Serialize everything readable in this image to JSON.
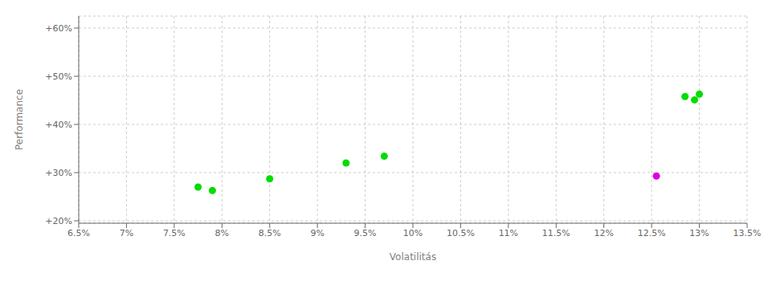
{
  "chart_data": {
    "type": "scatter",
    "xlabel": "Volatilitás",
    "ylabel": "Performance",
    "xlim": [
      0.065,
      0.135
    ],
    "ylim": [
      0.195,
      0.625
    ],
    "xticks": [
      {
        "value": 0.065,
        "label": "6.5%"
      },
      {
        "value": 0.07,
        "label": "7%"
      },
      {
        "value": 0.075,
        "label": "7.5%"
      },
      {
        "value": 0.08,
        "label": "8%"
      },
      {
        "value": 0.085,
        "label": "8.5%"
      },
      {
        "value": 0.09,
        "label": "9%"
      },
      {
        "value": 0.095,
        "label": "9.5%"
      },
      {
        "value": 0.1,
        "label": "10%"
      },
      {
        "value": 0.105,
        "label": "10.5%"
      },
      {
        "value": 0.11,
        "label": "11%"
      },
      {
        "value": 0.115,
        "label": "11.5%"
      },
      {
        "value": 0.12,
        "label": "12%"
      },
      {
        "value": 0.125,
        "label": "12.5%"
      },
      {
        "value": 0.13,
        "label": "13%"
      },
      {
        "value": 0.135,
        "label": "13.5%"
      }
    ],
    "yticks": [
      {
        "value": 0.2,
        "label": "+20%"
      },
      {
        "value": 0.3,
        "label": "+30%"
      },
      {
        "value": 0.4,
        "label": "+40%"
      },
      {
        "value": 0.5,
        "label": "+50%"
      },
      {
        "value": 0.6,
        "label": "+60%"
      }
    ],
    "grid": true,
    "series": [
      {
        "color": "#00dd00",
        "x": [
          0.0775,
          0.079,
          0.085,
          0.093,
          0.097,
          0.1285,
          0.1295,
          0.13
        ],
        "values": [
          0.27,
          0.263,
          0.287,
          0.32,
          0.334,
          0.458,
          0.451,
          0.463
        ]
      },
      {
        "color": "#dd00dd",
        "x": [
          0.1255
        ],
        "values": [
          0.293
        ]
      }
    ]
  }
}
